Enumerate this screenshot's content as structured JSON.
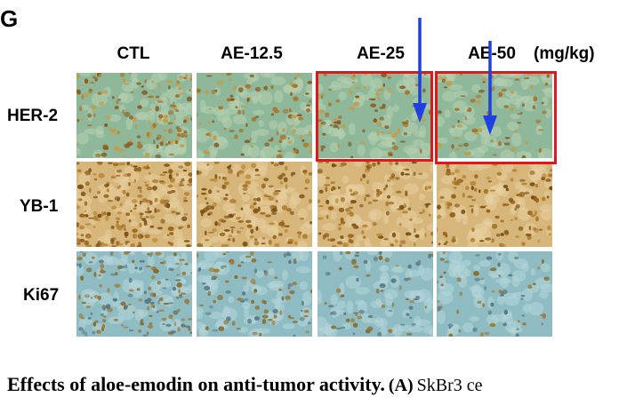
{
  "figure": {
    "panel_letter": "G",
    "unit": "(mg/kg)",
    "columns": [
      "CTL",
      "AE-12.5",
      "AE-25",
      "AE-50"
    ],
    "rows": [
      "HER-2",
      "YB-1",
      "Ki67"
    ],
    "highlighted_cells": [
      "HER-2 / AE-25",
      "HER-2 / AE-50"
    ],
    "colors": {
      "highlight": "#e01818",
      "arrow": "#1f3fe0"
    }
  },
  "caption": {
    "bold": "Effects of aloe-emodin on anti-tumor activity.",
    "label": "(A)",
    "text": "SkBr3 ce"
  }
}
